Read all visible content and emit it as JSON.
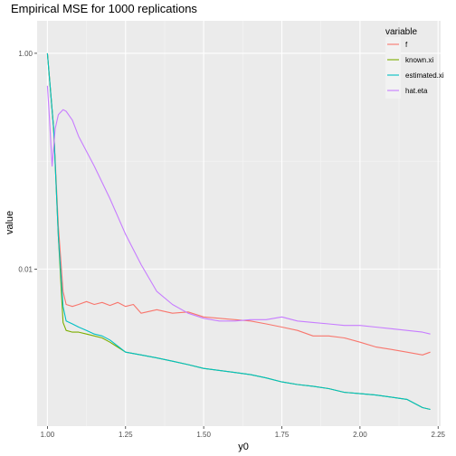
{
  "chart_data": {
    "type": "line",
    "title": "Empirical MSE for 1000 replications",
    "xlabel": "y0",
    "ylabel": "value",
    "x_ticks": [
      "1.00",
      "1.25",
      "1.50",
      "1.75",
      "2.00",
      "2.25"
    ],
    "y_ticks": [
      "1.00",
      "0.01"
    ],
    "y_scale": "log10",
    "xlim": [
      0.967,
      2.258
    ],
    "ylim": [
      0.00035,
      2.0
    ],
    "grid": true,
    "legend": {
      "title": "variable",
      "position": "right"
    },
    "series": [
      {
        "name": "f",
        "color": "#F8766D",
        "x": [
          1.0,
          1.02,
          1.035,
          1.05,
          1.06,
          1.08,
          1.1,
          1.125,
          1.15,
          1.175,
          1.2,
          1.225,
          1.25,
          1.275,
          1.3,
          1.35,
          1.4,
          1.45,
          1.5,
          1.55,
          1.6,
          1.65,
          1.7,
          1.75,
          1.8,
          1.85,
          1.9,
          1.95,
          2.0,
          2.05,
          2.1,
          2.15,
          2.2,
          2.225
        ],
        "y": [
          1.0,
          0.2,
          0.025,
          0.0062,
          0.0047,
          0.0045,
          0.0047,
          0.005,
          0.0047,
          0.0049,
          0.0046,
          0.0049,
          0.0045,
          0.0047,
          0.0039,
          0.0042,
          0.0039,
          0.004,
          0.0036,
          0.0035,
          0.0034,
          0.0033,
          0.0031,
          0.0029,
          0.0027,
          0.0024,
          0.0024,
          0.0023,
          0.0021,
          0.0019,
          0.0018,
          0.0017,
          0.0016,
          0.0017
        ]
      },
      {
        "name": "known.xi",
        "color": "#7CAE00",
        "x": [
          1.0,
          1.02,
          1.035,
          1.05,
          1.06,
          1.08,
          1.1,
          1.125,
          1.15,
          1.175,
          1.2,
          1.25,
          1.3,
          1.35,
          1.4,
          1.45,
          1.5,
          1.55,
          1.6,
          1.65,
          1.7,
          1.75,
          1.8,
          1.85,
          1.9,
          1.95,
          2.0,
          2.05,
          2.1,
          2.15,
          2.2,
          2.225
        ],
        "y": [
          1.0,
          0.2,
          0.02,
          0.0032,
          0.0027,
          0.0026,
          0.0026,
          0.0025,
          0.0024,
          0.0023,
          0.0021,
          0.0017,
          0.0016,
          0.0015,
          0.0014,
          0.0013,
          0.0012,
          0.00115,
          0.0011,
          0.00105,
          0.00098,
          0.0009,
          0.00085,
          0.00082,
          0.00078,
          0.00072,
          0.0007,
          0.00068,
          0.00065,
          0.00062,
          0.00052,
          0.0005
        ]
      },
      {
        "name": "estimated.xi",
        "color": "#00BFC4",
        "x": [
          1.0,
          1.02,
          1.035,
          1.05,
          1.06,
          1.08,
          1.1,
          1.125,
          1.15,
          1.175,
          1.2,
          1.25,
          1.3,
          1.35,
          1.4,
          1.45,
          1.5,
          1.55,
          1.6,
          1.65,
          1.7,
          1.75,
          1.8,
          1.85,
          1.9,
          1.95,
          2.0,
          2.05,
          2.1,
          2.15,
          2.2,
          2.225
        ],
        "y": [
          1.0,
          0.2,
          0.02,
          0.0045,
          0.0033,
          0.0031,
          0.0029,
          0.0027,
          0.0025,
          0.0024,
          0.0022,
          0.0017,
          0.0016,
          0.0015,
          0.0014,
          0.0013,
          0.0012,
          0.00115,
          0.0011,
          0.00105,
          0.00098,
          0.0009,
          0.00085,
          0.00082,
          0.00078,
          0.00072,
          0.0007,
          0.00068,
          0.00065,
          0.00062,
          0.00052,
          0.0005
        ]
      },
      {
        "name": "hat.eta",
        "color": "#C77CFF",
        "x": [
          1.0,
          1.005,
          1.015,
          1.025,
          1.035,
          1.05,
          1.06,
          1.08,
          1.1,
          1.15,
          1.2,
          1.25,
          1.3,
          1.35,
          1.4,
          1.45,
          1.5,
          1.55,
          1.6,
          1.65,
          1.7,
          1.75,
          1.8,
          1.85,
          1.9,
          1.95,
          2.0,
          2.05,
          2.1,
          2.15,
          2.2,
          2.225
        ],
        "y": [
          0.5,
          0.3,
          0.09,
          0.2,
          0.27,
          0.3,
          0.29,
          0.24,
          0.17,
          0.09,
          0.045,
          0.021,
          0.011,
          0.0062,
          0.0047,
          0.0039,
          0.0035,
          0.0033,
          0.0033,
          0.0034,
          0.0034,
          0.0036,
          0.0033,
          0.0032,
          0.0031,
          0.003,
          0.003,
          0.0029,
          0.0028,
          0.0027,
          0.0026,
          0.0025
        ]
      }
    ]
  }
}
